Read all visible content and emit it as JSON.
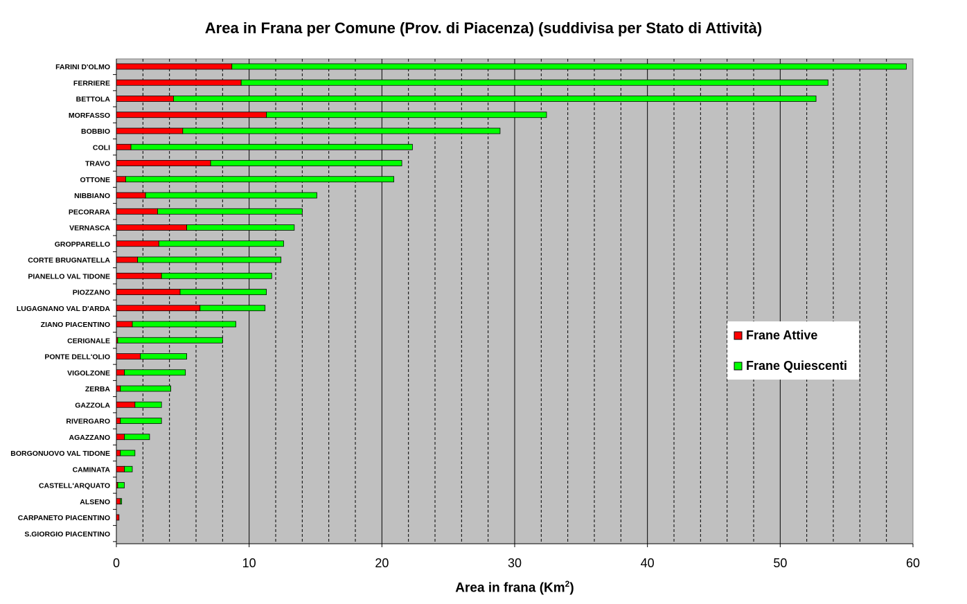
{
  "chart_data": {
    "type": "bar",
    "orientation": "horizontal",
    "stacked": true,
    "title": "Area in Frana per Comune (Prov. di Piacenza) (suddivisa per Stato di Attività)",
    "xlabel": "Area in frana (Km",
    "xlabel_sup": "2",
    "xlabel_close": ")",
    "xlim": [
      0,
      60
    ],
    "xticks": [
      0,
      10,
      20,
      30,
      40,
      50,
      60
    ],
    "minor_gridline_step": 2,
    "grid": true,
    "legend_position": "right",
    "categories": [
      "FARINI D'OLMO",
      "FERRIERE",
      "BETTOLA",
      "MORFASSO",
      "BOBBIO",
      "COLI",
      "TRAVO",
      "OTTONE",
      "NIBBIANO",
      "PECORARA",
      "VERNASCA",
      "GROPPARELLO",
      "CORTE BRUGNATELLA",
      "PIANELLO VAL TIDONE",
      "PIOZZANO",
      "LUGAGNANO VAL D'ARDA",
      "ZIANO PIACENTINO",
      "CERIGNALE",
      "PONTE DELL'OLIO",
      "VIGOLZONE",
      "ZERBA",
      "GAZZOLA",
      "RIVERGARO",
      "AGAZZANO",
      "BORGONUOVO VAL TIDONE",
      "CAMINATA",
      "CASTELL'ARQUATO",
      "ALSENO",
      "CARPANETO PIACENTINO",
      "S.GIORGIO PIACENTINO"
    ],
    "series": [
      {
        "name": "Frane Attive",
        "color": "#ff0000",
        "values": [
          8.7,
          9.4,
          4.3,
          11.3,
          5.0,
          1.1,
          7.1,
          0.7,
          2.2,
          3.1,
          5.3,
          3.2,
          1.6,
          3.4,
          4.8,
          6.3,
          1.2,
          0.1,
          1.8,
          0.6,
          0.3,
          1.4,
          0.3,
          0.6,
          0.3,
          0.6,
          0.1,
          0.3,
          0.2,
          0.0
        ]
      },
      {
        "name": "Frane Quiescenti",
        "color": "#00ff00",
        "values": [
          50.8,
          44.2,
          48.4,
          21.1,
          23.9,
          21.2,
          14.4,
          20.2,
          12.9,
          10.9,
          8.1,
          9.4,
          10.8,
          8.3,
          6.5,
          4.9,
          7.8,
          7.9,
          3.5,
          4.6,
          3.8,
          2.0,
          3.1,
          1.9,
          1.1,
          0.6,
          0.5,
          0.1,
          0.0,
          0.0
        ]
      }
    ]
  }
}
